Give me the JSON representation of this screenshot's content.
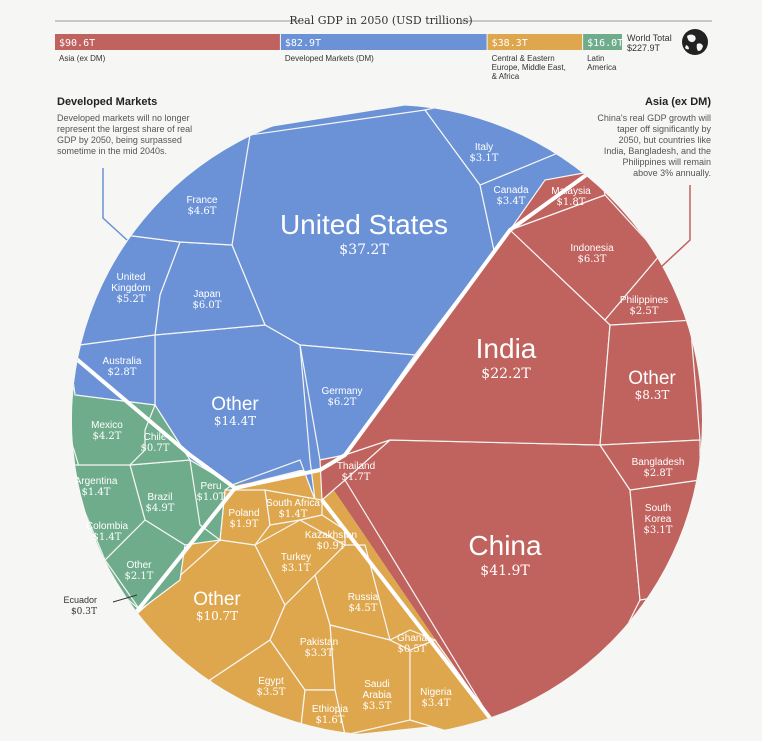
{
  "chart_data": {
    "type": "voronoi-treemap",
    "title": "Real GDP in 2050 (USD trillions)",
    "total": {
      "label": "World Total",
      "value": "$227.9T"
    },
    "regions": [
      {
        "name": "Asia (ex DM)",
        "value": 90.6,
        "value_label": "$90.6T",
        "color": "#c0625e"
      },
      {
        "name": "Developed Markets (DM)",
        "value": 82.9,
        "value_label": "$82.9T",
        "color": "#6b92d6"
      },
      {
        "name": "Central & Eastern Europe, Middle East, & Africa",
        "value": 38.3,
        "value_label": "$38.3T",
        "color": "#dea74e"
      },
      {
        "name": "Latin America",
        "value": 16.0,
        "value_label": "$16.0T",
        "color": "#6fac8c"
      }
    ],
    "bar_captions": {
      "asia": "Asia (ex DM)",
      "dm": "Developed Markets (DM)",
      "ceema_1": "Central & Eastern",
      "ceema_2": "Europe, Middle East,",
      "ceema_3": "& Africa",
      "latam_1": "Latin",
      "latam_2": "America"
    },
    "annotations": {
      "dm_title": "Developed Markets",
      "dm_lines": [
        "Developed markets will no longer",
        "represent the largest share of real",
        "GDP by 2050, being surpassed",
        "sometime in the mid 2040s."
      ],
      "asia_title": "Asia (ex DM)",
      "asia_lines": [
        "China's real GDP growth will",
        "taper off significantly by",
        "2050, but countries like",
        "India, Bangladesh, and the",
        "Philippines will remain",
        "above 3% annually."
      ]
    },
    "countries": [
      {
        "name": "United States",
        "value": 37.2,
        "label": "$37.2T",
        "region": "Developed Markets (DM)"
      },
      {
        "name": "Other",
        "value": 14.4,
        "label": "$14.4T",
        "region": "Developed Markets (DM)"
      },
      {
        "name": "Germany",
        "value": 6.2,
        "label": "$6.2T",
        "region": "Developed Markets (DM)"
      },
      {
        "name": "Japan",
        "value": 6.0,
        "label": "$6.0T",
        "region": "Developed Markets (DM)"
      },
      {
        "name": "United Kingdom",
        "value": 5.2,
        "label": "$5.2T",
        "region": "Developed Markets (DM)"
      },
      {
        "name": "France",
        "value": 4.6,
        "label": "$4.6T",
        "region": "Developed Markets (DM)"
      },
      {
        "name": "Canada",
        "value": 3.4,
        "label": "$3.4T",
        "region": "Developed Markets (DM)"
      },
      {
        "name": "Italy",
        "value": 3.1,
        "label": "$3.1T",
        "region": "Developed Markets (DM)"
      },
      {
        "name": "Australia",
        "value": 2.8,
        "label": "$2.8T",
        "region": "Developed Markets (DM)"
      },
      {
        "name": "China",
        "value": 41.9,
        "label": "$41.9T",
        "region": "Asia (ex DM)"
      },
      {
        "name": "India",
        "value": 22.2,
        "label": "$22.2T",
        "region": "Asia (ex DM)"
      },
      {
        "name": "Other",
        "value": 8.3,
        "label": "$8.3T",
        "region": "Asia (ex DM)"
      },
      {
        "name": "Indonesia",
        "value": 6.3,
        "label": "$6.3T",
        "region": "Asia (ex DM)"
      },
      {
        "name": "South Korea",
        "value": 3.1,
        "label": "$3.1T",
        "region": "Asia (ex DM)"
      },
      {
        "name": "Bangladesh",
        "value": 2.8,
        "label": "$2.8T",
        "region": "Asia (ex DM)"
      },
      {
        "name": "Philippines",
        "value": 2.5,
        "label": "$2.5T",
        "region": "Asia (ex DM)"
      },
      {
        "name": "Malaysia",
        "value": 1.8,
        "label": "$1.8T",
        "region": "Asia (ex DM)"
      },
      {
        "name": "Thailand",
        "value": 1.7,
        "label": "$1.7T",
        "region": "Asia (ex DM)"
      },
      {
        "name": "Other",
        "value": 10.7,
        "label": "$10.7T",
        "region": "Central & Eastern Europe, Middle East, & Africa"
      },
      {
        "name": "Russia",
        "value": 4.5,
        "label": "$4.5T",
        "region": "Central & Eastern Europe, Middle East, & Africa"
      },
      {
        "name": "Egypt",
        "value": 3.5,
        "label": "$3.5T",
        "region": "Central & Eastern Europe, Middle East, & Africa"
      },
      {
        "name": "Saudi Arabia",
        "value": 3.5,
        "label": "$3.5T",
        "region": "Central & Eastern Europe, Middle East, & Africa"
      },
      {
        "name": "Nigeria",
        "value": 3.4,
        "label": "$3.4T",
        "region": "Central & Eastern Europe, Middle East, & Africa"
      },
      {
        "name": "Pakistan",
        "value": 3.3,
        "label": "$3.3T",
        "region": "Central & Eastern Europe, Middle East, & Africa"
      },
      {
        "name": "Turkey",
        "value": 3.1,
        "label": "$3.1T",
        "region": "Central & Eastern Europe, Middle East, & Africa"
      },
      {
        "name": "Poland",
        "value": 1.9,
        "label": "$1.9T",
        "region": "Central & Eastern Europe, Middle East, & Africa"
      },
      {
        "name": "Ethiopia",
        "value": 1.6,
        "label": "$1.6T",
        "region": "Central & Eastern Europe, Middle East, & Africa"
      },
      {
        "name": "South Africa",
        "value": 1.4,
        "label": "$1.4T",
        "region": "Central & Eastern Europe, Middle East, & Africa"
      },
      {
        "name": "Kazakhstan",
        "value": 0.9,
        "label": "$0.9T",
        "region": "Central & Eastern Europe, Middle East, & Africa"
      },
      {
        "name": "Ghana",
        "value": 0.5,
        "label": "$0.5T",
        "region": "Central & Eastern Europe, Middle East, & Africa"
      },
      {
        "name": "Brazil",
        "value": 4.9,
        "label": "$4.9T",
        "region": "Latin America"
      },
      {
        "name": "Mexico",
        "value": 4.2,
        "label": "$4.2T",
        "region": "Latin America"
      },
      {
        "name": "Other",
        "value": 2.1,
        "label": "$2.1T",
        "region": "Latin America"
      },
      {
        "name": "Argentina",
        "value": 1.4,
        "label": "$1.4T",
        "region": "Latin America"
      },
      {
        "name": "Colombia",
        "value": 1.4,
        "label": "$1.4T",
        "region": "Latin America"
      },
      {
        "name": "Peru",
        "value": 1.0,
        "label": "$1.0T",
        "region": "Latin America"
      },
      {
        "name": "Chile",
        "value": 0.7,
        "label": "$0.7T",
        "region": "Latin America"
      },
      {
        "name": "Ecuador",
        "value": 0.3,
        "label": "$0.3T",
        "region": "Latin America"
      }
    ]
  }
}
